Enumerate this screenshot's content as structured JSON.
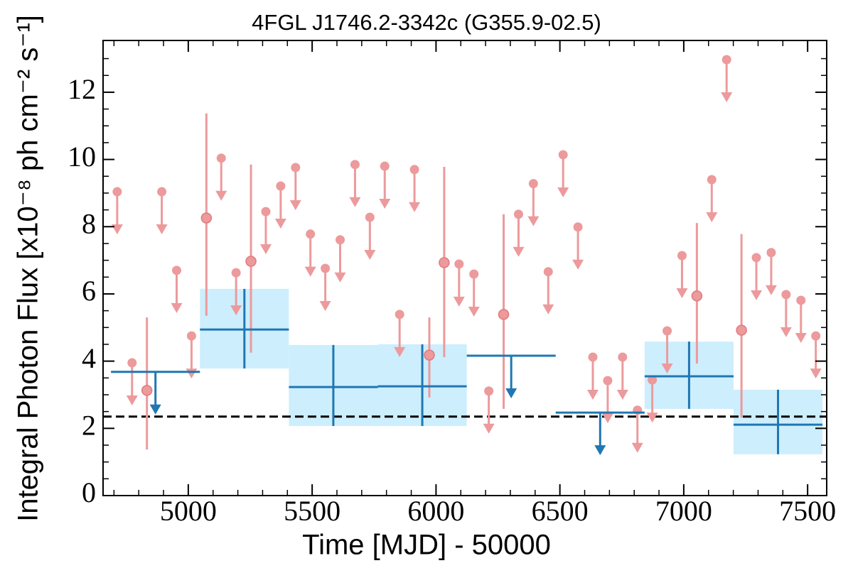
{
  "chart_data": {
    "type": "scatter",
    "title": "4FGL J1746.2-3342c (G355.9-02.5)",
    "x_label": "Time [MJD] - 50000",
    "y_label": "Integral Photon Flux [x10⁻⁸ ph cm⁻² s⁻¹]",
    "xlim": [
      4656,
      7577
    ],
    "ylim": [
      0,
      13.54
    ],
    "xticks": [
      5000,
      5500,
      6000,
      6500,
      7000,
      7500
    ],
    "yticks": [
      0,
      2,
      4,
      6,
      8,
      10,
      12
    ],
    "xticks_minor": [
      4700,
      4800,
      4900,
      5100,
      5200,
      5300,
      5400,
      5600,
      5700,
      5800,
      5900,
      6100,
      6200,
      6300,
      6400,
      6600,
      6700,
      6800,
      6900,
      7100,
      7200,
      7300,
      7400,
      7500
    ],
    "yticks_minor": [
      0.5,
      1,
      1.5,
      2.5,
      3,
      3.5,
      4.5,
      5,
      5.5,
      6.5,
      7,
      7.5,
      8.5,
      9,
      9.5,
      10.5,
      11,
      11.5,
      12.5,
      13
    ],
    "mean_flux": 2.35,
    "monthly": {
      "color": "#ec9a9c",
      "x": [
        4713,
        4773,
        4833,
        4893,
        4953,
        5013,
        5073,
        5133,
        5193,
        5253,
        5313,
        5373,
        5433,
        5493,
        5553,
        5613,
        5673,
        5733,
        5793,
        5853,
        5913,
        5973,
        6033,
        6093,
        6153,
        6213,
        6273,
        6333,
        6393,
        6453,
        6513,
        6573,
        6633,
        6693,
        6753,
        6813,
        6873,
        6933,
        6993,
        7053,
        7113,
        7173,
        7233,
        7293,
        7353,
        7413,
        7473,
        7533
      ],
      "values": [
        9.04,
        3.95,
        3.13,
        9.04,
        6.7,
        4.75,
        8.26,
        10.04,
        6.63,
        6.97,
        8.45,
        9.21,
        9.76,
        7.78,
        6.76,
        7.61,
        9.85,
        8.28,
        9.8,
        5.39,
        9.7,
        4.18,
        6.93,
        6.89,
        6.59,
        3.11,
        5.39,
        8.37,
        9.28,
        6.66,
        10.14,
        7.99,
        4.12,
        3.42,
        4.12,
        2.54,
        3.44,
        4.9,
        7.14,
        5.94,
        9.4,
        12.97,
        4.92,
        7.08,
        7.23,
        5.98,
        5.81,
        4.75
      ],
      "upper_limit": [
        true,
        true,
        false,
        true,
        true,
        true,
        false,
        true,
        true,
        false,
        true,
        true,
        true,
        true,
        true,
        true,
        true,
        true,
        true,
        true,
        true,
        false,
        false,
        true,
        true,
        true,
        false,
        true,
        true,
        true,
        true,
        true,
        true,
        true,
        true,
        true,
        true,
        true,
        true,
        false,
        true,
        true,
        false,
        true,
        true,
        true,
        true,
        true
      ],
      "err_low": [
        null,
        null,
        1.37,
        null,
        null,
        null,
        5.35,
        null,
        null,
        4.25,
        null,
        null,
        null,
        null,
        null,
        null,
        null,
        null,
        null,
        null,
        null,
        2.92,
        4.12,
        null,
        null,
        null,
        2.58,
        null,
        null,
        null,
        null,
        null,
        null,
        null,
        null,
        null,
        null,
        null,
        null,
        3.93,
        null,
        null,
        2.32,
        null,
        null,
        null,
        null,
        null
      ],
      "err_high": [
        null,
        null,
        5.3,
        null,
        null,
        null,
        11.37,
        null,
        null,
        9.85,
        null,
        null,
        null,
        null,
        null,
        null,
        null,
        null,
        null,
        null,
        null,
        5.3,
        9.78,
        null,
        null,
        null,
        8.37,
        null,
        null,
        null,
        null,
        null,
        null,
        null,
        null,
        null,
        null,
        null,
        null,
        8.11,
        null,
        null,
        7.78,
        null,
        null,
        null,
        null,
        null
      ]
    },
    "yearly": {
      "color": "#1f77b4",
      "band_color": "#cdeefc",
      "x_start": [
        4688,
        5047,
        5406,
        5765,
        6124,
        6483,
        6842,
        7201
      ],
      "x_end": [
        5047,
        5406,
        5765,
        6124,
        6483,
        6842,
        7201,
        7560
      ],
      "values": [
        3.68,
        4.94,
        3.23,
        3.25,
        4.16,
        2.47,
        3.55,
        2.11
      ],
      "upper_limit": [
        true,
        false,
        false,
        false,
        true,
        true,
        false,
        false
      ],
      "err_low": [
        null,
        3.78,
        2.07,
        2.07,
        null,
        null,
        2.58,
        1.23
      ],
      "err_high": [
        null,
        6.15,
        4.48,
        4.5,
        null,
        null,
        4.58,
        3.15
      ]
    }
  }
}
